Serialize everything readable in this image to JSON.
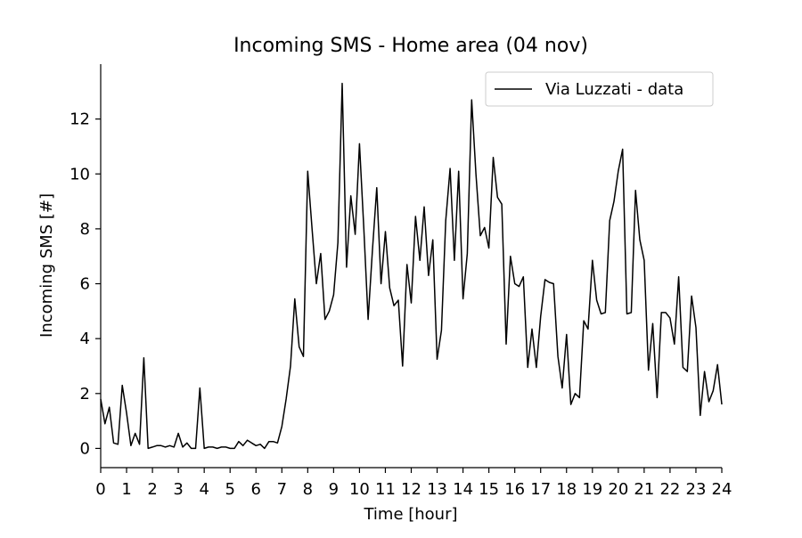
{
  "chart_data": {
    "type": "line",
    "title": "Incoming SMS - Home area (04 nov)",
    "xlabel": "Time [hour]",
    "ylabel": "Incoming SMS [#]",
    "xlim": [
      0,
      24
    ],
    "ylim": [
      -0.7,
      14.0
    ],
    "xticks": [
      0,
      1,
      2,
      3,
      4,
      5,
      6,
      7,
      8,
      9,
      10,
      11,
      12,
      13,
      14,
      15,
      16,
      17,
      18,
      19,
      20,
      21,
      22,
      23,
      24
    ],
    "yticks": [
      0,
      2,
      4,
      6,
      8,
      10,
      12
    ],
    "grid": false,
    "legend": {
      "position": "top-right"
    },
    "series": [
      {
        "name": "Via Luzzati - data",
        "color": "#000000",
        "x": [
          0.0,
          0.167,
          0.333,
          0.5,
          0.667,
          0.833,
          1.0,
          1.167,
          1.333,
          1.5,
          1.667,
          1.833,
          2.0,
          2.167,
          2.333,
          2.5,
          2.667,
          2.833,
          3.0,
          3.167,
          3.333,
          3.5,
          3.667,
          3.833,
          4.0,
          4.167,
          4.333,
          4.5,
          4.667,
          4.833,
          5.0,
          5.167,
          5.333,
          5.5,
          5.667,
          5.833,
          6.0,
          6.167,
          6.333,
          6.5,
          6.667,
          6.833,
          7.0,
          7.167,
          7.333,
          7.5,
          7.667,
          7.833,
          8.0,
          8.167,
          8.333,
          8.5,
          8.667,
          8.833,
          9.0,
          9.167,
          9.333,
          9.5,
          9.667,
          9.833,
          10.0,
          10.167,
          10.333,
          10.5,
          10.667,
          10.833,
          11.0,
          11.167,
          11.333,
          11.5,
          11.667,
          11.833,
          12.0,
          12.167,
          12.333,
          12.5,
          12.667,
          12.833,
          13.0,
          13.167,
          13.333,
          13.5,
          13.667,
          13.833,
          14.0,
          14.167,
          14.333,
          14.5,
          14.667,
          14.833,
          15.0,
          15.167,
          15.333,
          15.5,
          15.667,
          15.833,
          16.0,
          16.167,
          16.333,
          16.5,
          16.667,
          16.833,
          17.0,
          17.167,
          17.333,
          17.5,
          17.667,
          17.833,
          18.0,
          18.167,
          18.333,
          18.5,
          18.667,
          18.833,
          19.0,
          19.167,
          19.333,
          19.5,
          19.667,
          19.833,
          20.0,
          20.167,
          20.333,
          20.5,
          20.667,
          20.833,
          21.0,
          21.167,
          21.333,
          21.5,
          21.667,
          21.833,
          22.0,
          22.167,
          22.333,
          22.5,
          22.667,
          22.833,
          23.0,
          23.167,
          23.333,
          23.5,
          23.667,
          23.833,
          24.0
        ],
        "y": [
          1.8,
          0.9,
          1.5,
          0.2,
          0.15,
          2.3,
          1.3,
          0.1,
          0.55,
          0.15,
          3.3,
          0.0,
          0.05,
          0.1,
          0.1,
          0.05,
          0.1,
          0.05,
          0.55,
          0.05,
          0.2,
          0.0,
          0.0,
          2.2,
          0.0,
          0.05,
          0.05,
          0.0,
          0.05,
          0.05,
          0.0,
          0.0,
          0.25,
          0.1,
          0.3,
          0.2,
          0.1,
          0.15,
          0.0,
          0.25,
          0.25,
          0.2,
          0.8,
          1.8,
          3.0,
          5.45,
          3.7,
          3.35,
          10.1,
          8.0,
          6.0,
          7.1,
          4.7,
          5.0,
          5.6,
          7.5,
          13.3,
          6.6,
          9.2,
          7.8,
          11.1,
          8.0,
          4.7,
          7.2,
          9.5,
          6.0,
          7.9,
          5.85,
          5.2,
          5.4,
          3.0,
          6.7,
          5.3,
          8.45,
          6.85,
          8.8,
          6.3,
          7.6,
          3.25,
          4.3,
          8.3,
          10.2,
          6.85,
          10.1,
          5.45,
          7.1,
          12.7,
          10.0,
          7.75,
          8.05,
          7.3,
          10.6,
          9.15,
          8.9,
          3.8,
          7.0,
          6.0,
          5.9,
          6.25,
          2.95,
          4.35,
          2.95,
          4.8,
          6.15,
          6.05,
          6.0,
          3.35,
          2.2,
          4.15,
          1.6,
          2.0,
          1.85,
          4.65,
          4.35,
          6.85,
          5.4,
          4.9,
          4.95,
          8.3,
          9.0,
          10.1,
          10.9,
          4.9,
          4.95,
          9.4,
          7.6,
          6.85,
          2.85,
          4.55,
          1.85,
          4.95,
          4.95,
          4.75,
          3.8,
          6.25,
          2.95,
          2.8,
          5.55,
          4.4,
          1.2,
          2.8,
          1.7,
          2.1,
          3.05,
          1.6
        ]
      }
    ]
  }
}
